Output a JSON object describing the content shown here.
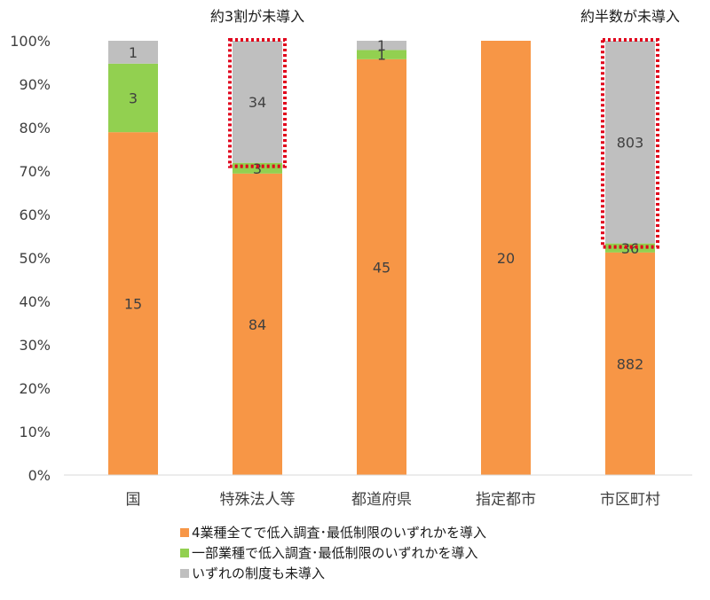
{
  "chart_data": {
    "type": "bar",
    "stacked": "percent",
    "categories": [
      "国",
      "特殊法人等",
      "都道府県",
      "指定都市",
      "市区町村"
    ],
    "series": [
      {
        "name": "4業種全てで低入調査･最低制限のいずれかを導入",
        "color": "#f79646",
        "values": [
          15,
          84,
          45,
          20,
          882
        ]
      },
      {
        "name": "一部業種で低入調査･最低制限のいずれかを導入",
        "color": "#92d050",
        "values": [
          3,
          3,
          1,
          0,
          36
        ]
      },
      {
        "name": "いずれの制度も未導入",
        "color": "#bfbfbf",
        "values": [
          1,
          34,
          1,
          0,
          803
        ]
      }
    ],
    "yticks": [
      "0%",
      "10%",
      "20%",
      "30%",
      "40%",
      "50%",
      "60%",
      "70%",
      "80%",
      "90%",
      "100%"
    ],
    "ylim": [
      0,
      100
    ],
    "grid": false,
    "legend_position": "bottom",
    "annotations": [
      {
        "text": "約3割が未導入",
        "category_index": 1,
        "series_index": 2
      },
      {
        "text": "約半数が未導入",
        "category_index": 4,
        "series_index": 2
      }
    ],
    "highlight_color": "#e0001b"
  }
}
